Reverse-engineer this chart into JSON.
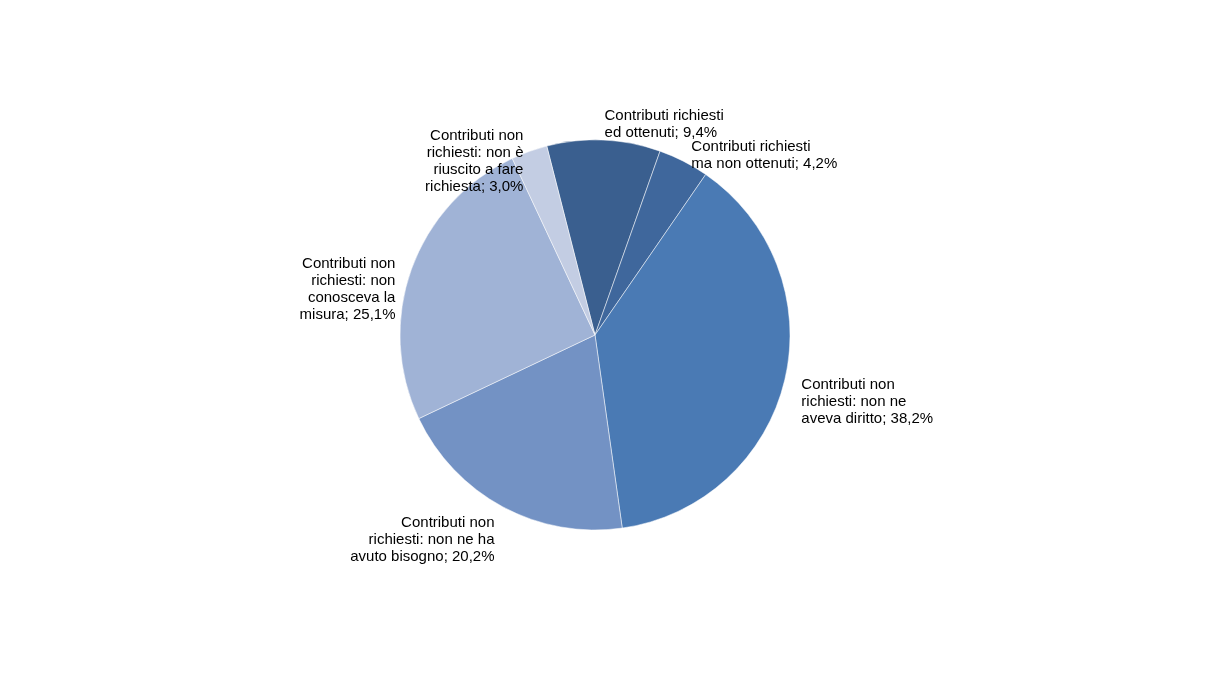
{
  "chart_data": {
    "type": "pie",
    "categories": [
      "Contributi richiesti ed ottenuti",
      "Contributi richiesti ma non ottenuti",
      "Contributi non richiesti: non ne aveva diritto",
      "Contributi non richiesti: non ne ha avuto bisogno",
      "Contributi non richiesti: non conosceva la misura",
      "Contributi non richiesti: non è riuscito a fare richiesta"
    ],
    "values": [
      9.4,
      4.2,
      38.2,
      20.2,
      25.1,
      3.0
    ],
    "value_labels": [
      "9,4%",
      "4,2%",
      "38,2%",
      "20,2%",
      "25,1%",
      "3,0%"
    ],
    "colors": [
      "#3a5f8f",
      "#3f679c",
      "#4a7ab4",
      "#7392c4",
      "#a0b3d6",
      "#c3cde3"
    ],
    "legend": false
  }
}
